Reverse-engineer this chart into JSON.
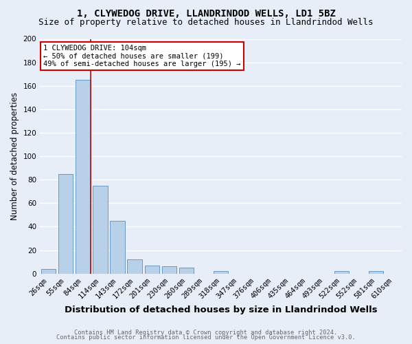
{
  "title1": "1, CLYWEDOG DRIVE, LLANDRINDOD WELLS, LD1 5BZ",
  "title2": "Size of property relative to detached houses in Llandrindod Wells",
  "xlabel": "Distribution of detached houses by size in Llandrindod Wells",
  "ylabel": "Number of detached properties",
  "categories": [
    "26sqm",
    "55sqm",
    "84sqm",
    "114sqm",
    "143sqm",
    "172sqm",
    "201sqm",
    "230sqm",
    "260sqm",
    "289sqm",
    "318sqm",
    "347sqm",
    "376sqm",
    "406sqm",
    "435sqm",
    "464sqm",
    "493sqm",
    "522sqm",
    "552sqm",
    "581sqm",
    "610sqm"
  ],
  "values": [
    4,
    85,
    165,
    75,
    45,
    12,
    7,
    6,
    5,
    0,
    2,
    0,
    0,
    0,
    0,
    0,
    0,
    2,
    0,
    2,
    0
  ],
  "bar_color": "#b8d0e8",
  "bar_edge_color": "#6699cc",
  "vline_color": "#cc0000",
  "vline_pos": 2.43,
  "annotation_text": "1 CLYWEDOG DRIVE: 104sqm\n← 50% of detached houses are smaller (199)\n49% of semi-detached houses are larger (195) →",
  "annotation_box_facecolor": "#ffffff",
  "annotation_box_edgecolor": "#cc0000",
  "ylim": [
    0,
    200
  ],
  "yticks": [
    0,
    20,
    40,
    60,
    80,
    100,
    120,
    140,
    160,
    180,
    200
  ],
  "footer1": "Contains HM Land Registry data © Crown copyright and database right 2024.",
  "footer2": "Contains public sector information licensed under the Open Government Licence v3.0.",
  "bg_color": "#e8eef8",
  "plot_bg_color": "#e8eef8",
  "grid_color": "#ffffff",
  "title_fontsize": 10,
  "subtitle_fontsize": 9,
  "tick_fontsize": 7.5,
  "ylabel_fontsize": 8.5,
  "xlabel_fontsize": 9.5,
  "footer_fontsize": 6.2,
  "annotation_fontsize": 7.5
}
